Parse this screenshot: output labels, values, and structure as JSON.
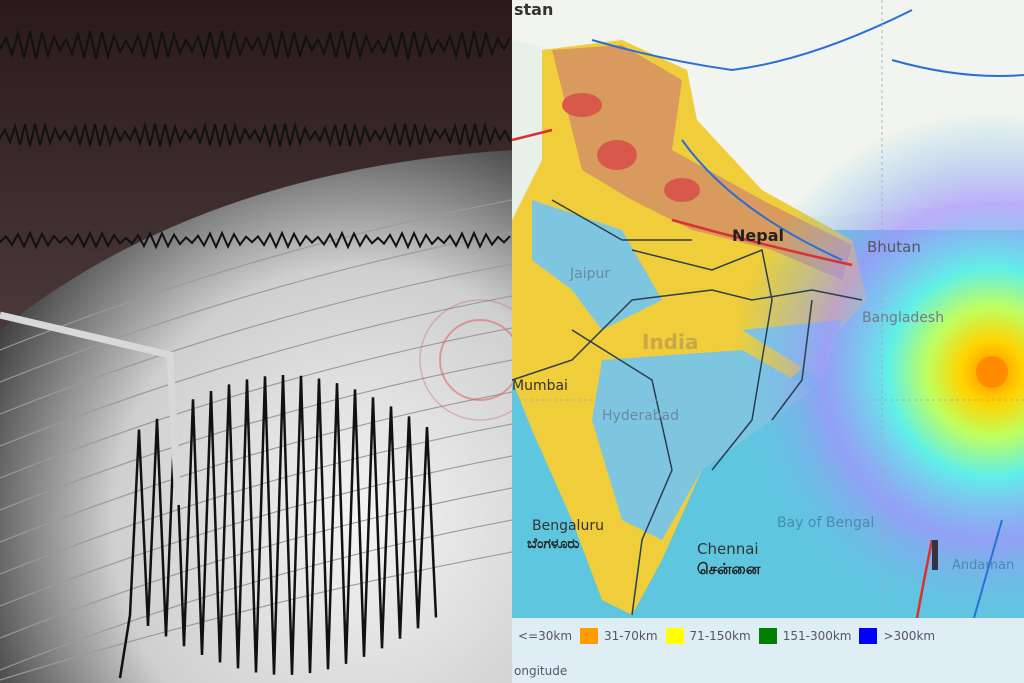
{
  "seismograph": {
    "description_icon": "seismograph-photo"
  },
  "map": {
    "labels": {
      "pakistan": "stan",
      "nepal": "Nepal",
      "bhutan": "Bhutan",
      "bangladesh": "Bangladesh",
      "india": "India",
      "jaipur": "Jaipur",
      "mumbai": "Mumbai",
      "hyderabad": "Hyderabad",
      "bengaluru": "Bengaluru",
      "bengaluru_local": "ಬೆಂಗಳೂರು",
      "chennai": "Chennai",
      "chennai_local": "சென்னை",
      "bay_of_bengal": "Bay of Bengal",
      "andaman": "Andaman"
    },
    "epicenter_color": "#ff8c00"
  },
  "legend": {
    "items": [
      {
        "label": "<=30km",
        "color": null
      },
      {
        "label": "31-70km",
        "color": "#ff9a00"
      },
      {
        "label": "71-150km",
        "color": "#ffff00"
      },
      {
        "label": "151-300km",
        "color": "#008000"
      },
      {
        "label": ">300km",
        "color": "#0000ff"
      }
    ],
    "axis_label": "ongitude"
  }
}
